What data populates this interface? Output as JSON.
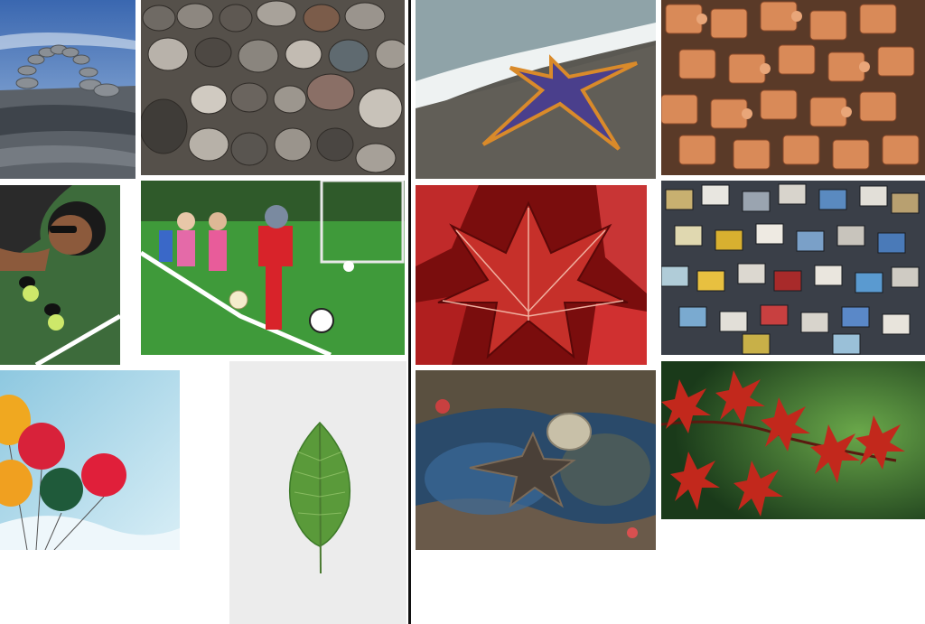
{
  "gallery": {
    "tiles": [
      {
        "id": "stone-arch",
        "icon": "stone-arch-on-rocks-photo"
      },
      {
        "id": "pebbles",
        "icon": "pebble-stones-photo"
      },
      {
        "id": "starfish-beach",
        "icon": "starfish-on-beach-photo"
      },
      {
        "id": "puzzle-brown",
        "icon": "brown-puzzle-pieces-photo"
      },
      {
        "id": "tennis-woman",
        "icon": "woman-with-tennis-balls-photo"
      },
      {
        "id": "kids-soccer",
        "icon": "kids-playing-soccer-photo"
      },
      {
        "id": "red-leaf",
        "icon": "red-maple-leaf-photo"
      },
      {
        "id": "puzzle-colorful",
        "icon": "colorful-puzzle-pieces-photo"
      },
      {
        "id": "balloons",
        "icon": "balloons-in-sky-photo"
      },
      {
        "id": "green-leaf",
        "icon": "green-leaf-photo"
      },
      {
        "id": "underwater-starfish",
        "icon": "underwater-starfish-photo"
      },
      {
        "id": "red-japanese-maple",
        "icon": "red-japanese-maple-photo"
      }
    ]
  },
  "colors": {
    "divider": "#111111",
    "sky": "#4a78b8",
    "grass": "#3f9a3a",
    "puzzle": "#d98a58",
    "red_leaf": "#b01c1c",
    "green_leaf": "#5a9a3a"
  }
}
